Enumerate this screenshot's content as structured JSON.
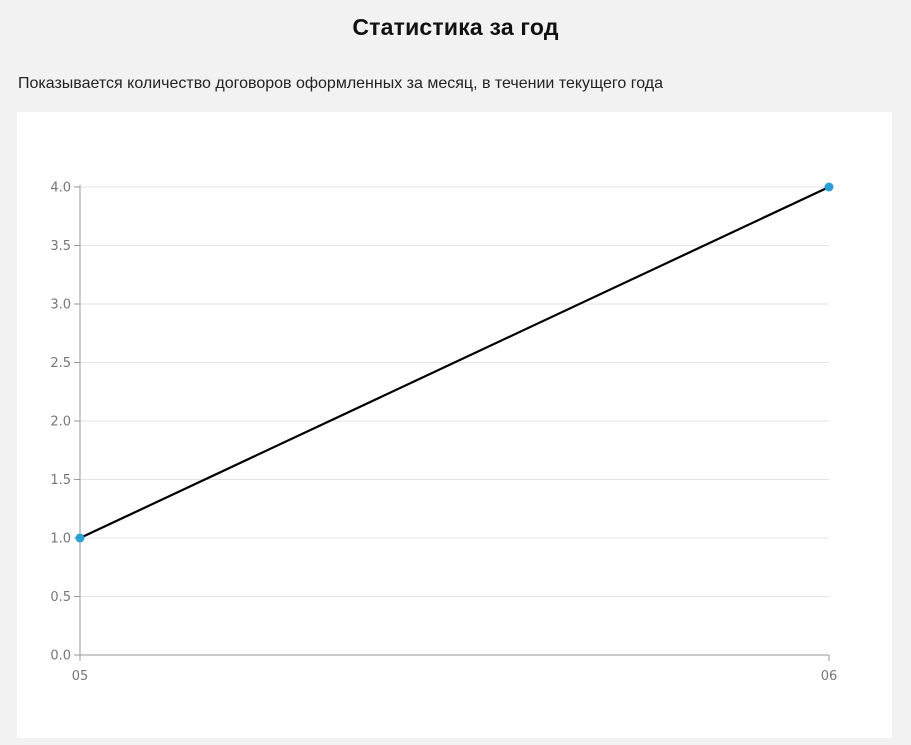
{
  "page": {
    "title": "Статистика за год",
    "subtitle": "Показывается количество договоров оформленных за месяц, в течении текущего года"
  },
  "colors": {
    "background": "#f2f2f2",
    "card": "#ffffff",
    "line": "#000000",
    "point": "#2b9fd3",
    "grid": "#e3e3e3",
    "axis": "#999999",
    "tick_text": "#777777"
  },
  "chart_data": {
    "type": "line",
    "categories": [
      "05",
      "06"
    ],
    "series": [
      {
        "values": [
          1.0,
          4.0
        ]
      }
    ],
    "yticks": [
      "0.0",
      "0.5",
      "1.0",
      "1.5",
      "2.0",
      "2.5",
      "3.0",
      "3.5",
      "4.0"
    ],
    "ylim": [
      0,
      4
    ],
    "grid": true,
    "legend": "none"
  }
}
